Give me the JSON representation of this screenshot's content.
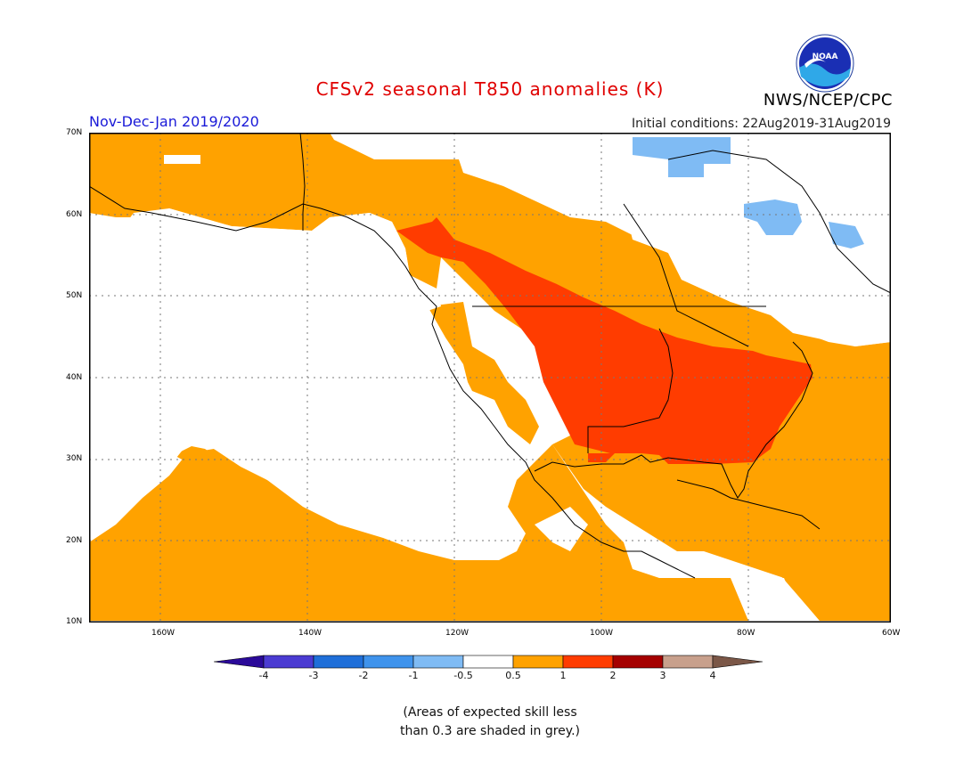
{
  "title": "CFSv2 seasonal T850 anomalies (K)",
  "org_label": "NWS/NCEP/CPC",
  "logo_text": "NOAA",
  "period": "Nov-Dec-Jan 2019/2020",
  "initial_conditions": "Initial conditions: 22Aug2019-31Aug2019",
  "lat_labels": [
    "70N",
    "60N",
    "50N",
    "40N",
    "30N",
    "20N",
    "10N"
  ],
  "lon_labels": [
    "160W",
    "140W",
    "120W",
    "100W",
    "80W",
    "60W"
  ],
  "colorbar": {
    "ticks": [
      "-4",
      "-3",
      "-2",
      "-1",
      "-0.5",
      "0.5",
      "1",
      "2",
      "3",
      "4"
    ],
    "colors": [
      "#2b0a99",
      "#4b3bd2",
      "#1f6fd9",
      "#3f93ec",
      "#7fbbf4",
      "#ffffff",
      "#ffa200",
      "#ff3c00",
      "#a50000",
      "#c8a08c",
      "#7b5747"
    ]
  },
  "note": "(Areas of expected skill less\nthan 0.3 are shaded in grey.)"
}
